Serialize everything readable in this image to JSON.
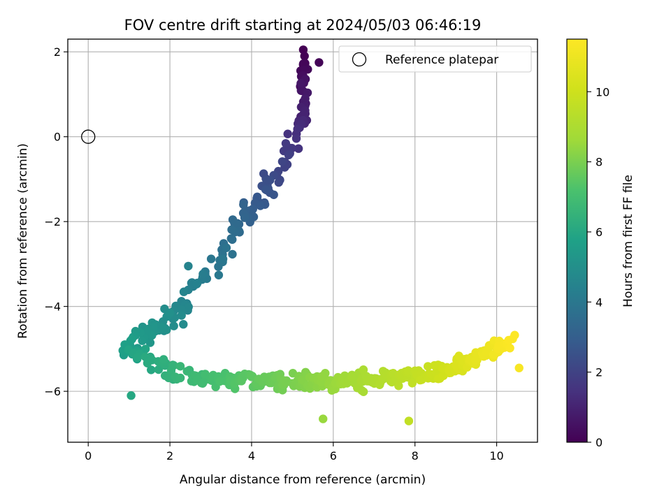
{
  "chart_data": {
    "type": "scatter",
    "title": "FOV centre drift starting at 2024/05/03 06:46:19",
    "xlabel": "Angular distance from reference (arcmin)",
    "ylabel": "Rotation from reference (arcmin)",
    "xlim": [
      -0.5,
      11.0
    ],
    "ylim": [
      -7.2,
      2.3
    ],
    "xticks": [
      0,
      2,
      4,
      6,
      8,
      10
    ],
    "yticks": [
      -6,
      -4,
      -2,
      0,
      2
    ],
    "grid": true,
    "colormap": "viridis",
    "colorbar": {
      "label": "Hours from first FF file",
      "min": 0,
      "max": 11.5,
      "ticks": [
        0,
        2,
        4,
        6,
        8,
        10
      ]
    },
    "legend": {
      "placement": "top-right",
      "entries": [
        "Reference platepar"
      ]
    },
    "reference_point": {
      "x": 0,
      "y": 0
    },
    "series": [
      {
        "color_by": "hours",
        "segments": [
          {
            "from": {
              "x": 5.25,
              "y": 1.85,
              "hours": 0.0
            },
            "to": {
              "x": 5.3,
              "y": 0.5,
              "hours": 1.0
            },
            "n": 30,
            "x_jitter": 0.25,
            "y_jitter": 0.35
          },
          {
            "from": {
              "x": 5.3,
              "y": 0.5,
              "hours": 1.0
            },
            "to": {
              "x": 4.6,
              "y": -0.9,
              "hours": 2.2
            },
            "n": 30,
            "x_jitter": 0.25,
            "y_jitter": 0.25
          },
          {
            "from": {
              "x": 4.6,
              "y": -0.9,
              "hours": 2.2
            },
            "to": {
              "x": 3.6,
              "y": -2.3,
              "hours": 3.5
            },
            "n": 40,
            "x_jitter": 0.3,
            "y_jitter": 0.3
          },
          {
            "from": {
              "x": 3.6,
              "y": -2.3,
              "hours": 3.5
            },
            "to": {
              "x": 2.1,
              "y": -4.2,
              "hours": 4.8
            },
            "n": 40,
            "x_jitter": 0.35,
            "y_jitter": 0.3
          },
          {
            "from": {
              "x": 2.1,
              "y": -4.2,
              "hours": 4.8
            },
            "to": {
              "x": 0.9,
              "y": -5.0,
              "hours": 5.7
            },
            "n": 40,
            "x_jitter": 0.3,
            "y_jitter": 0.4
          },
          {
            "from": {
              "x": 0.9,
              "y": -5.0,
              "hours": 5.7
            },
            "to": {
              "x": 2.6,
              "y": -5.7,
              "hours": 6.8
            },
            "n": 40,
            "x_jitter": 0.35,
            "y_jitter": 0.35
          },
          {
            "from": {
              "x": 2.6,
              "y": -5.7,
              "hours": 6.8
            },
            "to": {
              "x": 6.2,
              "y": -5.8,
              "hours": 8.6
            },
            "n": 120,
            "x_jitter": 0.15,
            "y_jitter": 0.3
          },
          {
            "from": {
              "x": 6.2,
              "y": -5.8,
              "hours": 8.6
            },
            "to": {
              "x": 8.6,
              "y": -5.6,
              "hours": 10.0
            },
            "n": 90,
            "x_jitter": 0.15,
            "y_jitter": 0.3
          },
          {
            "from": {
              "x": 8.6,
              "y": -5.6,
              "hours": 10.0
            },
            "to": {
              "x": 10.4,
              "y": -4.8,
              "hours": 11.5
            },
            "n": 90,
            "x_jitter": 0.2,
            "y_jitter": 0.25
          }
        ],
        "outliers": [
          {
            "x": 2.45,
            "y": -3.05,
            "hours": 4.5
          },
          {
            "x": 1.05,
            "y": -6.1,
            "hours": 6.0
          },
          {
            "x": 7.85,
            "y": -6.7,
            "hours": 9.6
          },
          {
            "x": 5.75,
            "y": -6.65,
            "hours": 8.5
          },
          {
            "x": 3.8,
            "y": -1.6,
            "hours": 3.2
          },
          {
            "x": 5.65,
            "y": 1.75,
            "hours": 0.1
          },
          {
            "x": 10.55,
            "y": -5.45,
            "hours": 11.3
          }
        ]
      }
    ]
  }
}
